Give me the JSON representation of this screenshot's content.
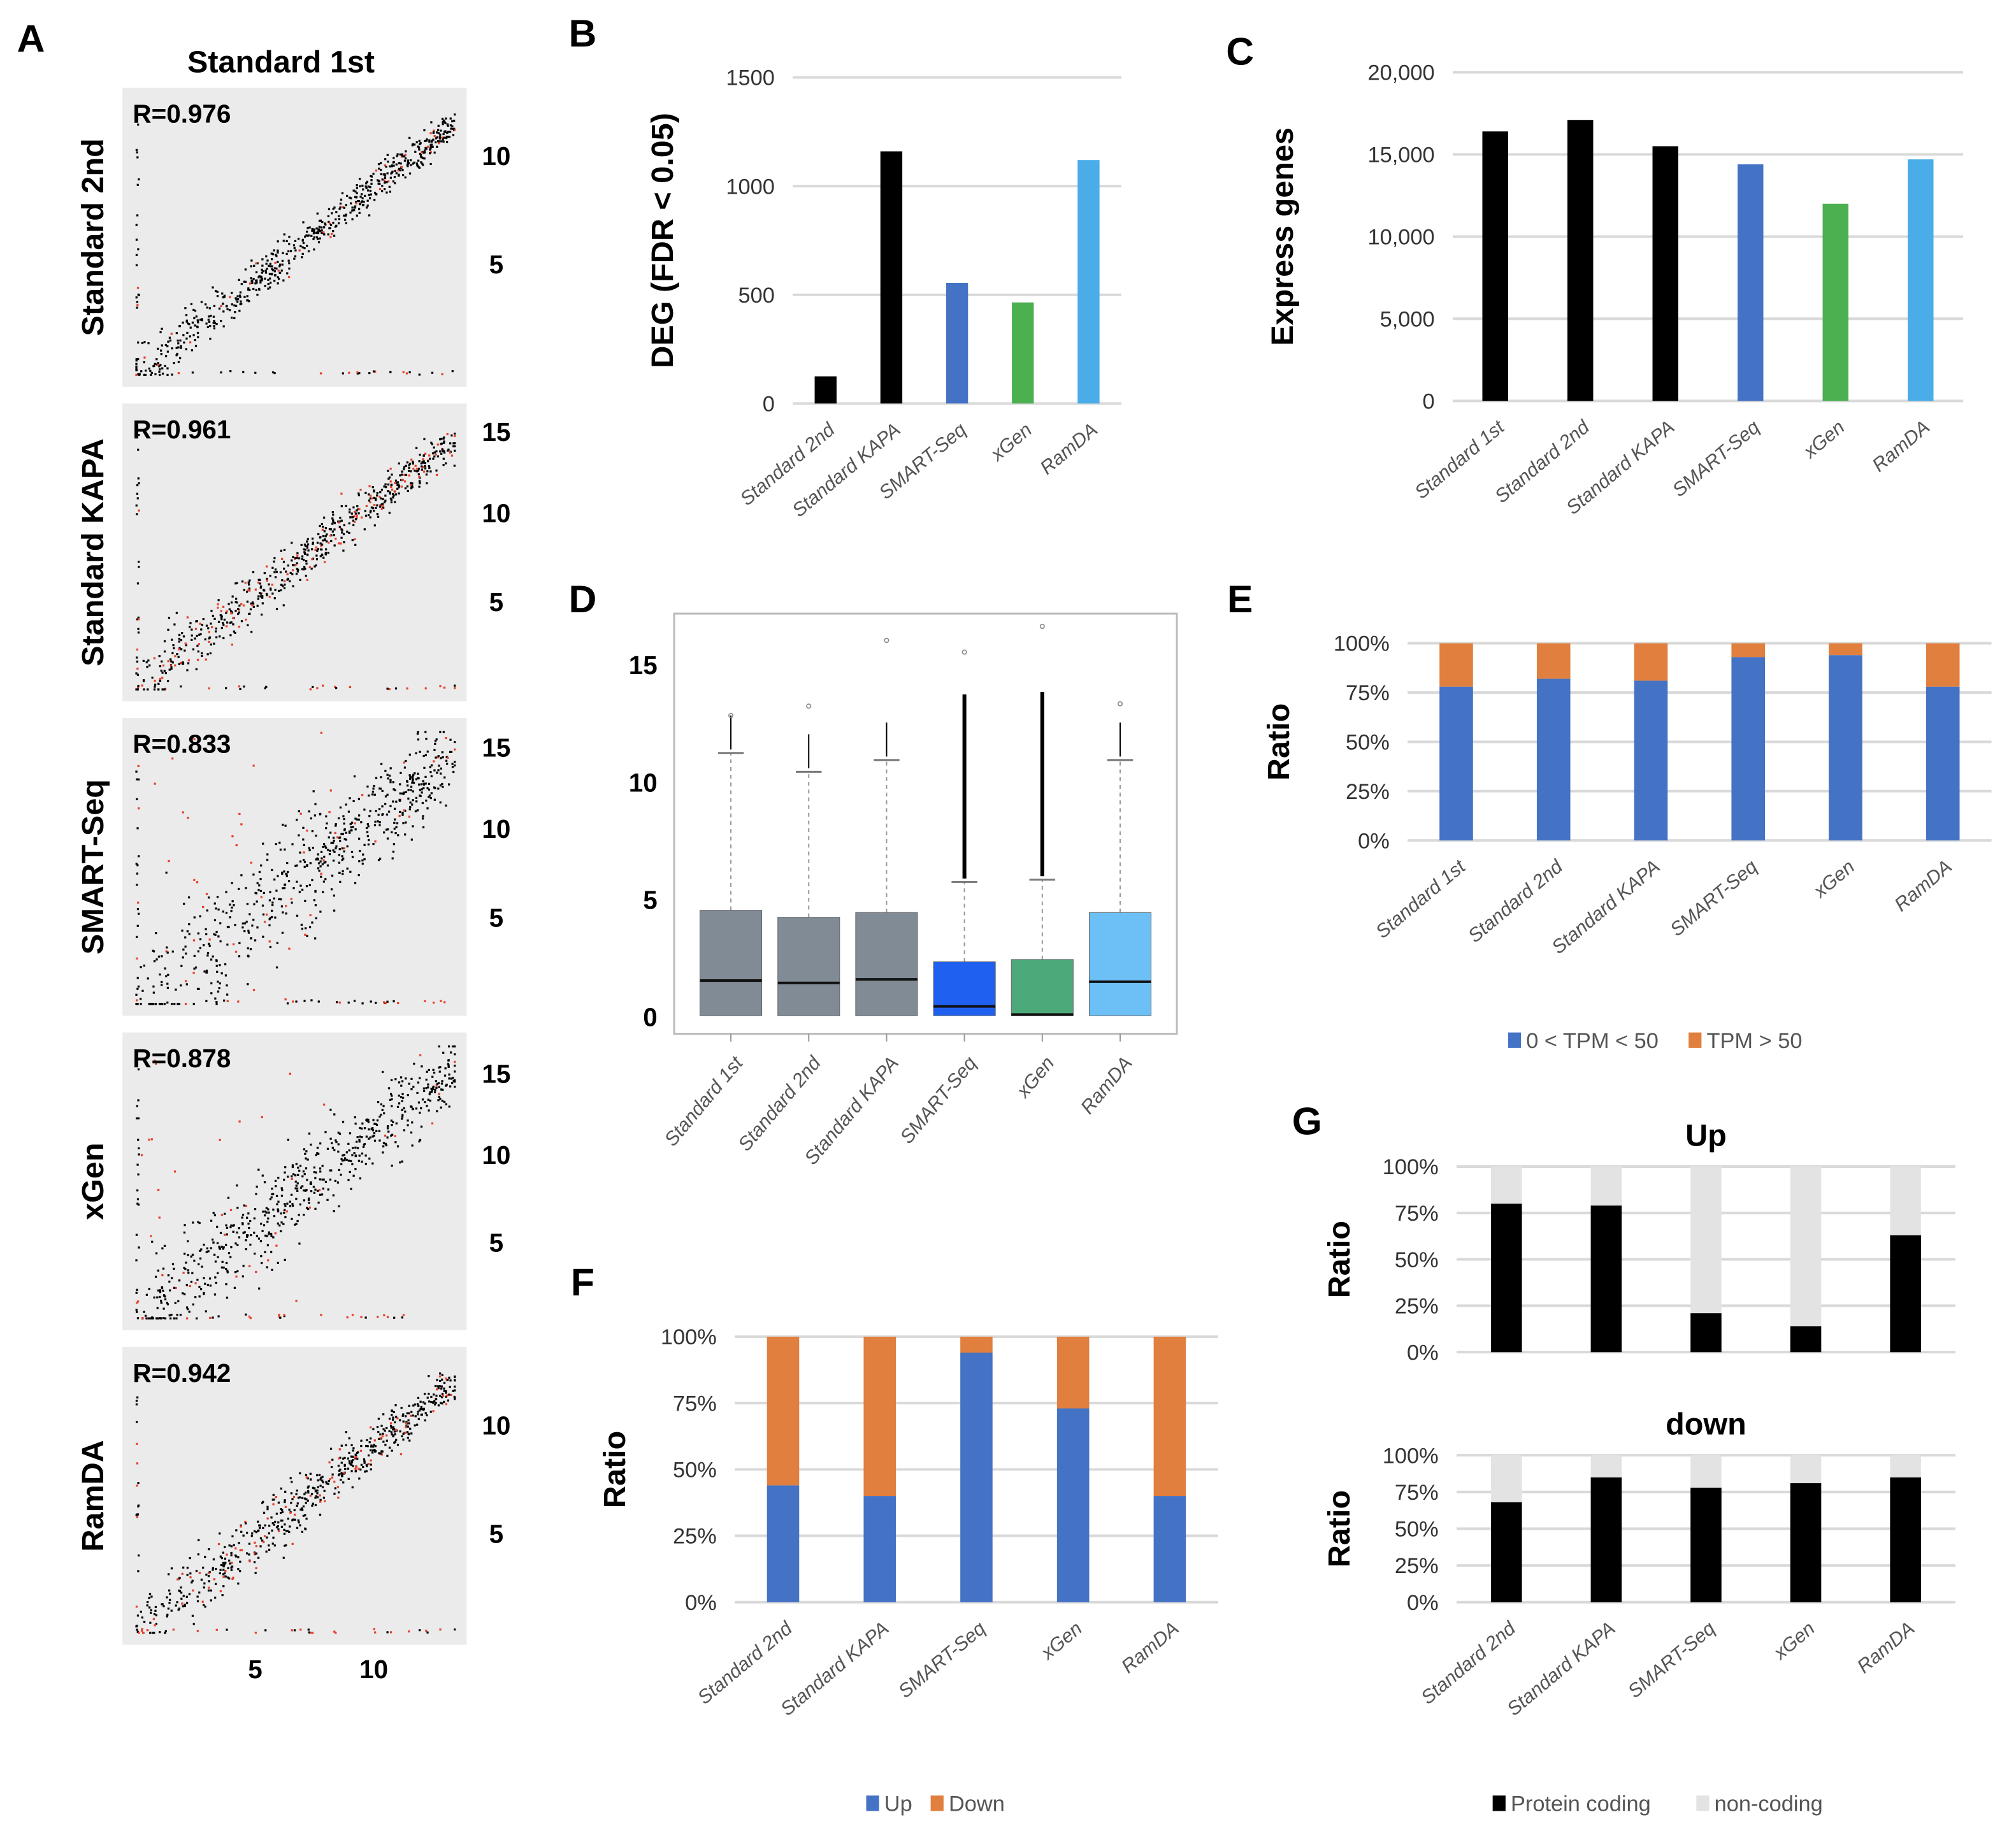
{
  "chart_data": [
    {
      "type": "scatter",
      "panel": "A",
      "title": "Standard 1st",
      "xticks": [
        "5",
        "10"
      ],
      "subplots": [
        {
          "ylabel": "Standard 2nd",
          "r_label": "R=0.976",
          "r": 0.976,
          "yticks": [
            "10",
            "5"
          ],
          "red_fraction": 0.05
        },
        {
          "ylabel": "Standard KAPA",
          "r_label": "R=0.961",
          "r": 0.961,
          "yticks": [
            "15",
            "10",
            "5"
          ],
          "red_fraction": 0.2
        },
        {
          "ylabel": "SMART-Seq",
          "r_label": "R=0.833",
          "r": 0.833,
          "yticks": [
            "15",
            "10",
            "5"
          ],
          "red_fraction": 0.08
        },
        {
          "ylabel": "xGen",
          "r_label": "R=0.878",
          "r": 0.878,
          "yticks": [
            "15",
            "10",
            "5"
          ],
          "red_fraction": 0.06
        },
        {
          "ylabel": "RamDA",
          "r_label": "R=0.942",
          "r": 0.942,
          "yticks": [
            "10",
            "5"
          ],
          "red_fraction": 0.15
        }
      ],
      "colors": {
        "points": "#000000",
        "deg_points": "#e8402a",
        "background": "#ebebeb"
      }
    },
    {
      "type": "bar",
      "panel": "B",
      "ylabel": "DEG (FDR < 0.05)",
      "ylim": [
        0,
        1500
      ],
      "yticks": [
        "0",
        "500",
        "1000",
        "1500"
      ],
      "categories": [
        "Standard 2nd",
        "Standard KAPA",
        "SMART-Seq",
        "xGen",
        "RamDA"
      ],
      "values": [
        125,
        1160,
        555,
        465,
        1120
      ],
      "colors": [
        "#000000",
        "#000000",
        "#4472c4",
        "#4caf50",
        "#4aade8"
      ]
    },
    {
      "type": "bar",
      "panel": "C",
      "ylabel": "Express genes",
      "ylim": [
        0,
        20000
      ],
      "yticks": [
        "0",
        "5,000",
        "10,000",
        "15,000",
        "20,000"
      ],
      "categories": [
        "Standard 1st",
        "Standard 2nd",
        "Standard KAPA",
        "SMART-Seq",
        "xGen",
        "RamDA"
      ],
      "values": [
        16400,
        17100,
        15500,
        14400,
        12000,
        14700
      ],
      "colors": [
        "#000000",
        "#000000",
        "#000000",
        "#4472c4",
        "#4caf50",
        "#4aade8"
      ]
    },
    {
      "type": "box",
      "panel": "D",
      "ylim": [
        -0.5,
        17
      ],
      "yticks": [
        "0",
        "5",
        "10",
        "15"
      ],
      "categories": [
        "Standard 1st",
        "Standard 2nd",
        "Standard KAPA",
        "SMART-Seq",
        "xGen",
        "RamDA"
      ],
      "q1": [
        0,
        0,
        0,
        0,
        0,
        0
      ],
      "median": [
        1.5,
        1.4,
        1.55,
        0.4,
        0.05,
        1.45
      ],
      "q3": [
        4.5,
        4.2,
        4.4,
        2.3,
        2.4,
        4.4
      ],
      "whisker_high": [
        11.2,
        10.4,
        10.9,
        5.7,
        5.8,
        10.9
      ],
      "outlier_max": [
        12.8,
        13.2,
        16.0,
        15.5,
        16.6,
        13.3
      ],
      "colors": [
        "#808b96",
        "#808b96",
        "#808b96",
        "#2060f0",
        "#4caa7a",
        "#6cc0f5"
      ]
    },
    {
      "type": "bar",
      "stacked": true,
      "panel": "E",
      "ylabel": "Ratio",
      "ylim": [
        0,
        1
      ],
      "yticks": [
        "0%",
        "25%",
        "50%",
        "75%",
        "100%"
      ],
      "categories": [
        "Standard 1st",
        "Standard 2nd",
        "Standard KAPA",
        "SMART-Seq",
        "xGen",
        "RamDA"
      ],
      "series": [
        {
          "name": "0 < TPM < 50",
          "values": [
            0.78,
            0.82,
            0.81,
            0.93,
            0.94,
            0.78
          ],
          "color": "#4472c4"
        },
        {
          "name": "TPM > 50",
          "values": [
            0.22,
            0.18,
            0.19,
            0.07,
            0.06,
            0.22
          ],
          "color": "#e07f3e"
        }
      ]
    },
    {
      "type": "bar",
      "stacked": true,
      "panel": "F",
      "ylabel": "Ratio",
      "ylim": [
        0,
        1
      ],
      "yticks": [
        "0%",
        "25%",
        "50%",
        "75%",
        "100%"
      ],
      "categories": [
        "Standard 2nd",
        "Standard KAPA",
        "SMART-Seq",
        "xGen",
        "RamDA"
      ],
      "series": [
        {
          "name": "Up",
          "values": [
            0.44,
            0.4,
            0.94,
            0.73,
            0.4
          ],
          "color": "#4472c4"
        },
        {
          "name": "Down",
          "values": [
            0.56,
            0.6,
            0.06,
            0.27,
            0.6
          ],
          "color": "#e07f3e"
        }
      ]
    },
    {
      "type": "bar",
      "stacked": true,
      "panel": "G",
      "title": "Up",
      "ylabel": "Ratio",
      "ylim": [
        0,
        1
      ],
      "yticks": [
        "0%",
        "25%",
        "50%",
        "75%",
        "100%"
      ],
      "categories": [
        "Standard 2nd",
        "Standard KAPA",
        "SMART-Seq",
        "xGen",
        "RamDA"
      ],
      "series": [
        {
          "name": "Protein coding",
          "values": [
            0.8,
            0.79,
            0.21,
            0.14,
            0.63
          ],
          "color": "#000000"
        },
        {
          "name": "non-coding",
          "values": [
            0.2,
            0.21,
            0.79,
            0.86,
            0.37
          ],
          "color": "#e3e3e3"
        }
      ]
    },
    {
      "type": "bar",
      "stacked": true,
      "panel": "",
      "title": "down",
      "ylabel": "Ratio",
      "ylim": [
        0,
        1
      ],
      "yticks": [
        "0%",
        "25%",
        "50%",
        "75%",
        "100%"
      ],
      "categories": [
        "Standard 2nd",
        "Standard KAPA",
        "SMART-Seq",
        "xGen",
        "RamDA"
      ],
      "series": [
        {
          "name": "Protein coding",
          "values": [
            0.68,
            0.85,
            0.78,
            0.81,
            0.85
          ],
          "color": "#000000"
        },
        {
          "name": "non-coding",
          "values": [
            0.32,
            0.15,
            0.22,
            0.19,
            0.15
          ],
          "color": "#e3e3e3"
        }
      ]
    }
  ]
}
